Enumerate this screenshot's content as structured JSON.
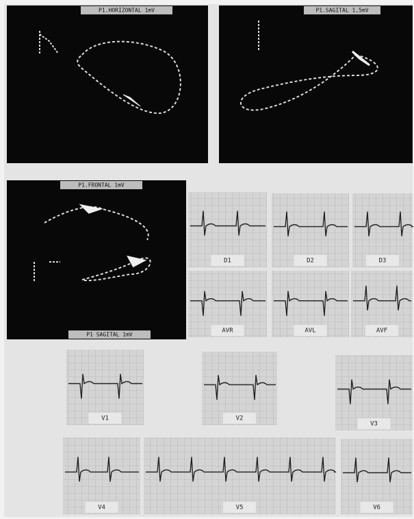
{
  "vectorcardiograms": [
    "P1.HORIZONTAL 1mV",
    "P1.SAGITAL 1,5mV",
    "P1.FRONTAL 1mV",
    "P1 SAGITAL 1mV"
  ],
  "leads": [
    "D1",
    "D2",
    "D3",
    "AVR",
    "AVL",
    "AVF",
    "V1",
    "V2",
    "V3",
    "V4",
    "V5",
    "V6"
  ]
}
